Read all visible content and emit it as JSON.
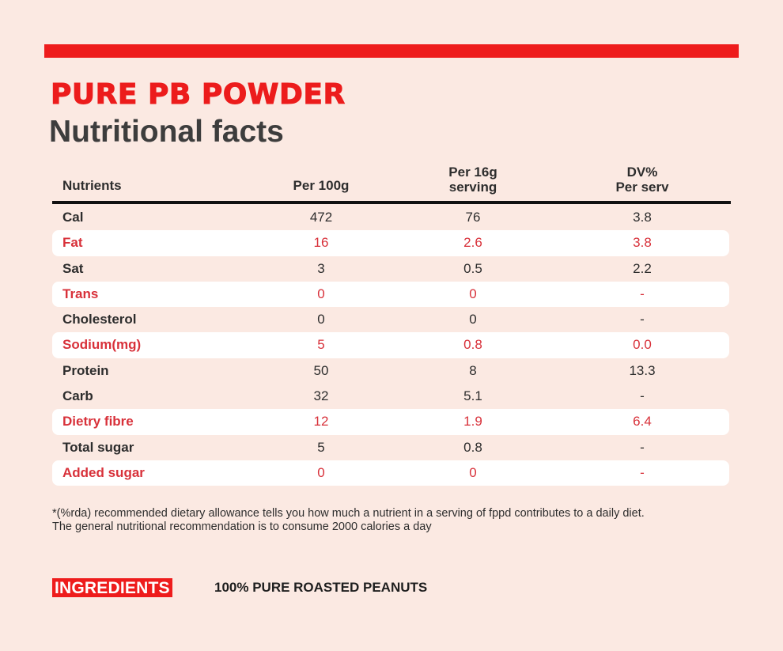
{
  "colors": {
    "background": "#fbe9e2",
    "accent_red": "#ee1c1c",
    "highlight_text": "#d8313a",
    "dark_text": "#2d2d2d"
  },
  "header": {
    "brand": "PURE PB POWDER",
    "subtitle": "Nutritional facts"
  },
  "table": {
    "headers": [
      {
        "lines": [
          "Nutrients"
        ]
      },
      {
        "lines": [
          "Per 100g"
        ]
      },
      {
        "lines": [
          "Per 16g",
          "serving"
        ]
      },
      {
        "lines": [
          "DV%",
          "Per serv"
        ]
      }
    ],
    "rows": [
      {
        "nutrient": "Cal",
        "per_100g": "472",
        "per_16g": "76",
        "dv": "3.8",
        "highlight": false
      },
      {
        "nutrient": "Fat",
        "per_100g": "16",
        "per_16g": "2.6",
        "dv": "3.8",
        "highlight": true
      },
      {
        "nutrient": "Sat",
        "per_100g": "3",
        "per_16g": "0.5",
        "dv": "2.2",
        "highlight": false
      },
      {
        "nutrient": "Trans",
        "per_100g": "0",
        "per_16g": "0",
        "dv": "-",
        "highlight": true
      },
      {
        "nutrient": "Cholesterol",
        "per_100g": "0",
        "per_16g": "0",
        "dv": "-",
        "highlight": false
      },
      {
        "nutrient": "Sodium(mg)",
        "per_100g": "5",
        "per_16g": "0.8",
        "dv": "0.0",
        "highlight": true
      },
      {
        "nutrient": "Protein",
        "per_100g": "50",
        "per_16g": "8",
        "dv": "13.3",
        "highlight": false
      },
      {
        "nutrient": "Carb",
        "per_100g": "32",
        "per_16g": "5.1",
        "dv": "-",
        "highlight": false
      },
      {
        "nutrient": "Dietry fibre",
        "per_100g": "12",
        "per_16g": "1.9",
        "dv": "6.4",
        "highlight": true
      },
      {
        "nutrient": "Total sugar",
        "per_100g": "5",
        "per_16g": "0.8",
        "dv": "-",
        "highlight": false
      },
      {
        "nutrient": "Added sugar",
        "per_100g": "0",
        "per_16g": "0",
        "dv": "-",
        "highlight": true
      }
    ]
  },
  "footnote": {
    "line1": "*(%rda) recommended dietary allowance tells you how much a nutrient in a serving of fppd contributes to a daily diet.",
    "line2": "The general nutritional recommendation is to consume 2000 calories a day"
  },
  "ingredients": {
    "label": "INGREDIENTS",
    "text": "100% PURE ROASTED PEANUTS"
  }
}
